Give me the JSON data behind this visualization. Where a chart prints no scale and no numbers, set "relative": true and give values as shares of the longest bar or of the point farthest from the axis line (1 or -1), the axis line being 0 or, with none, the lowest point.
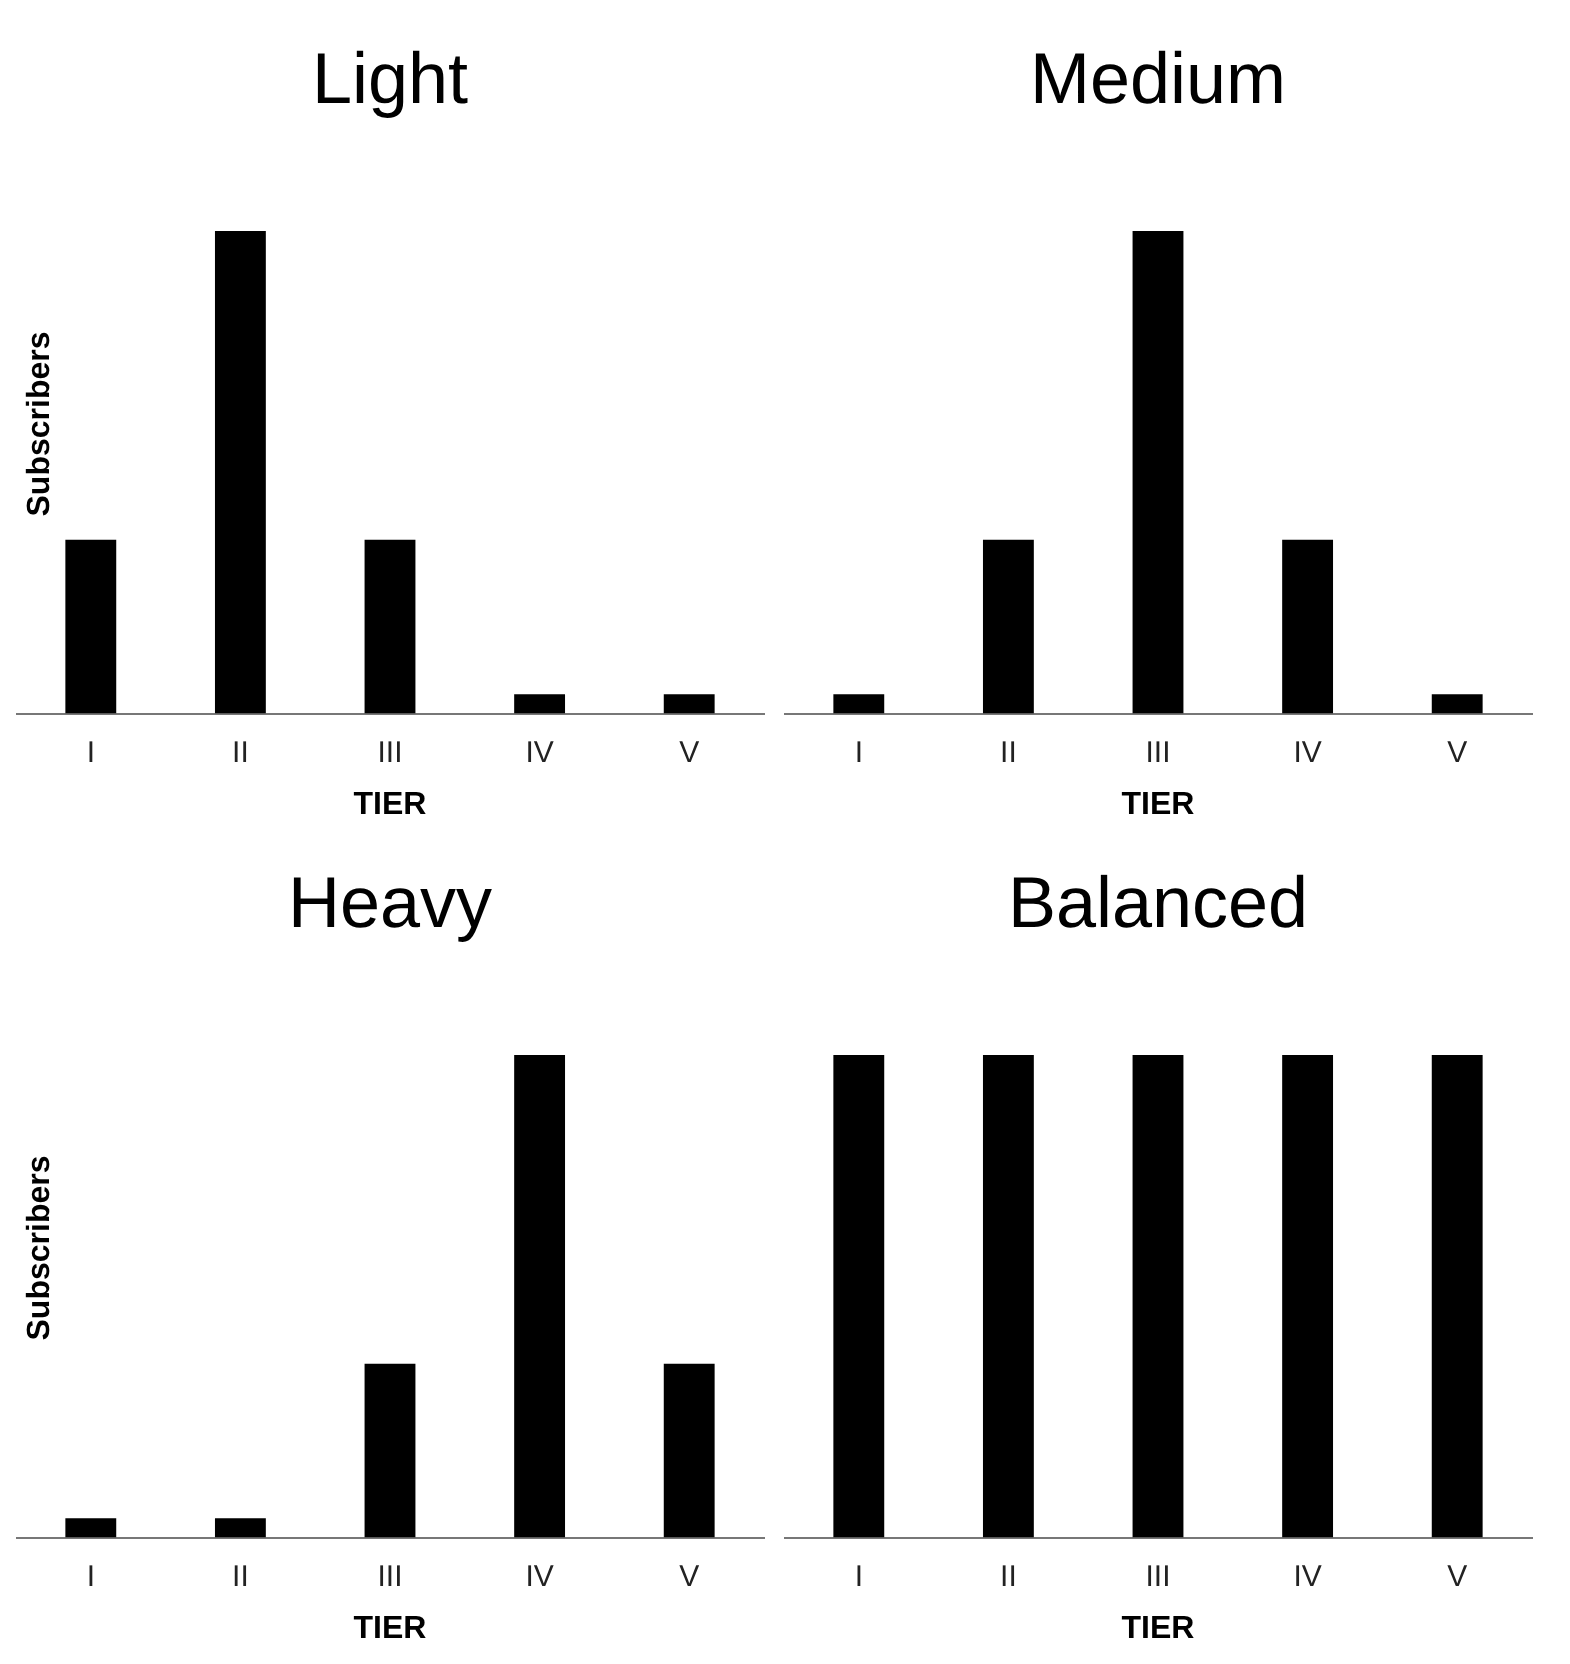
{
  "chart_data": [
    {
      "type": "bar",
      "title": "Light",
      "xlabel": "TIER",
      "ylabel": "Subscribers",
      "relative": true,
      "categories": [
        "I",
        "II",
        "III",
        "IV",
        "V"
      ],
      "values": [
        0.36,
        1,
        0.36,
        0.04,
        0.04
      ],
      "color": "#000000",
      "grid": false,
      "legend": false
    },
    {
      "type": "bar",
      "title": "Medium",
      "xlabel": "TIER",
      "relative": true,
      "categories": [
        "I",
        "II",
        "III",
        "IV",
        "V"
      ],
      "values": [
        0.04,
        0.36,
        1,
        0.36,
        0.04
      ],
      "color": "#000000",
      "grid": false,
      "legend": false
    },
    {
      "type": "bar",
      "title": "Heavy",
      "xlabel": "TIER",
      "ylabel": "Subscribers",
      "relative": true,
      "categories": [
        "I",
        "II",
        "III",
        "IV",
        "V"
      ],
      "values": [
        0.04,
        0.04,
        0.36,
        1,
        0.36
      ],
      "color": "#000000",
      "grid": false,
      "legend": false
    },
    {
      "type": "bar",
      "title": "Balanced",
      "xlabel": "TIER",
      "relative": true,
      "categories": [
        "I",
        "II",
        "III",
        "IV",
        "V"
      ],
      "values": [
        1,
        1,
        1,
        1,
        1
      ],
      "color": "#000000",
      "grid": false,
      "legend": false
    }
  ]
}
